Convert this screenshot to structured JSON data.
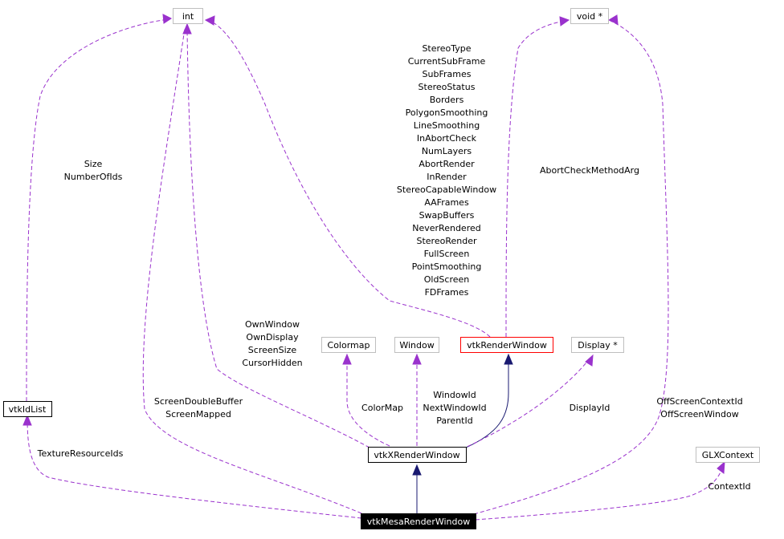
{
  "nodes": {
    "int": "int",
    "void_ptr": "void *",
    "vtkIdList": "vtkIdList",
    "Colormap": "Colormap",
    "Window": "Window",
    "vtkRenderWindow": "vtkRenderWindow",
    "Display_ptr": "Display *",
    "vtkXRenderWindow": "vtkXRenderWindow",
    "GLXContext": "GLXContext",
    "vtkMesaRenderWindow": "vtkMesaRenderWindow"
  },
  "edge_labels": {
    "int_to_idlist": [
      "Size",
      "NumberOfIds"
    ],
    "int_to_renderwindow": [
      "StereoType",
      "CurrentSubFrame",
      "SubFrames",
      "StereoStatus",
      "Borders",
      "PolygonSmoothing",
      "LineSmoothing",
      "InAbortCheck",
      "NumLayers",
      "AbortRender",
      "InRender",
      "StereoCapableWindow",
      "AAFrames",
      "SwapBuffers",
      "NeverRendered",
      "StereoRender",
      "FullScreen",
      "PointSmoothing",
      "OldScreen",
      "FDFrames"
    ],
    "void_to_renderwindow": [
      "AbortCheckMethodArg"
    ],
    "int_to_xrender": [
      "OwnWindow",
      "OwnDisplay",
      "ScreenSize",
      "CursorHidden"
    ],
    "int_to_mesa": [
      "ScreenDoubleBuffer",
      "ScreenMapped"
    ],
    "colormap": [
      "ColorMap"
    ],
    "window": [
      "WindowId",
      "NextWindowId",
      "ParentId"
    ],
    "display": [
      "DisplayId"
    ],
    "void_to_mesa": [
      "OffScreenContextId",
      "OffScreenWindow"
    ],
    "idlist_to_mesa": [
      "TextureResourceIds"
    ],
    "glx": [
      "ContextId"
    ]
  }
}
